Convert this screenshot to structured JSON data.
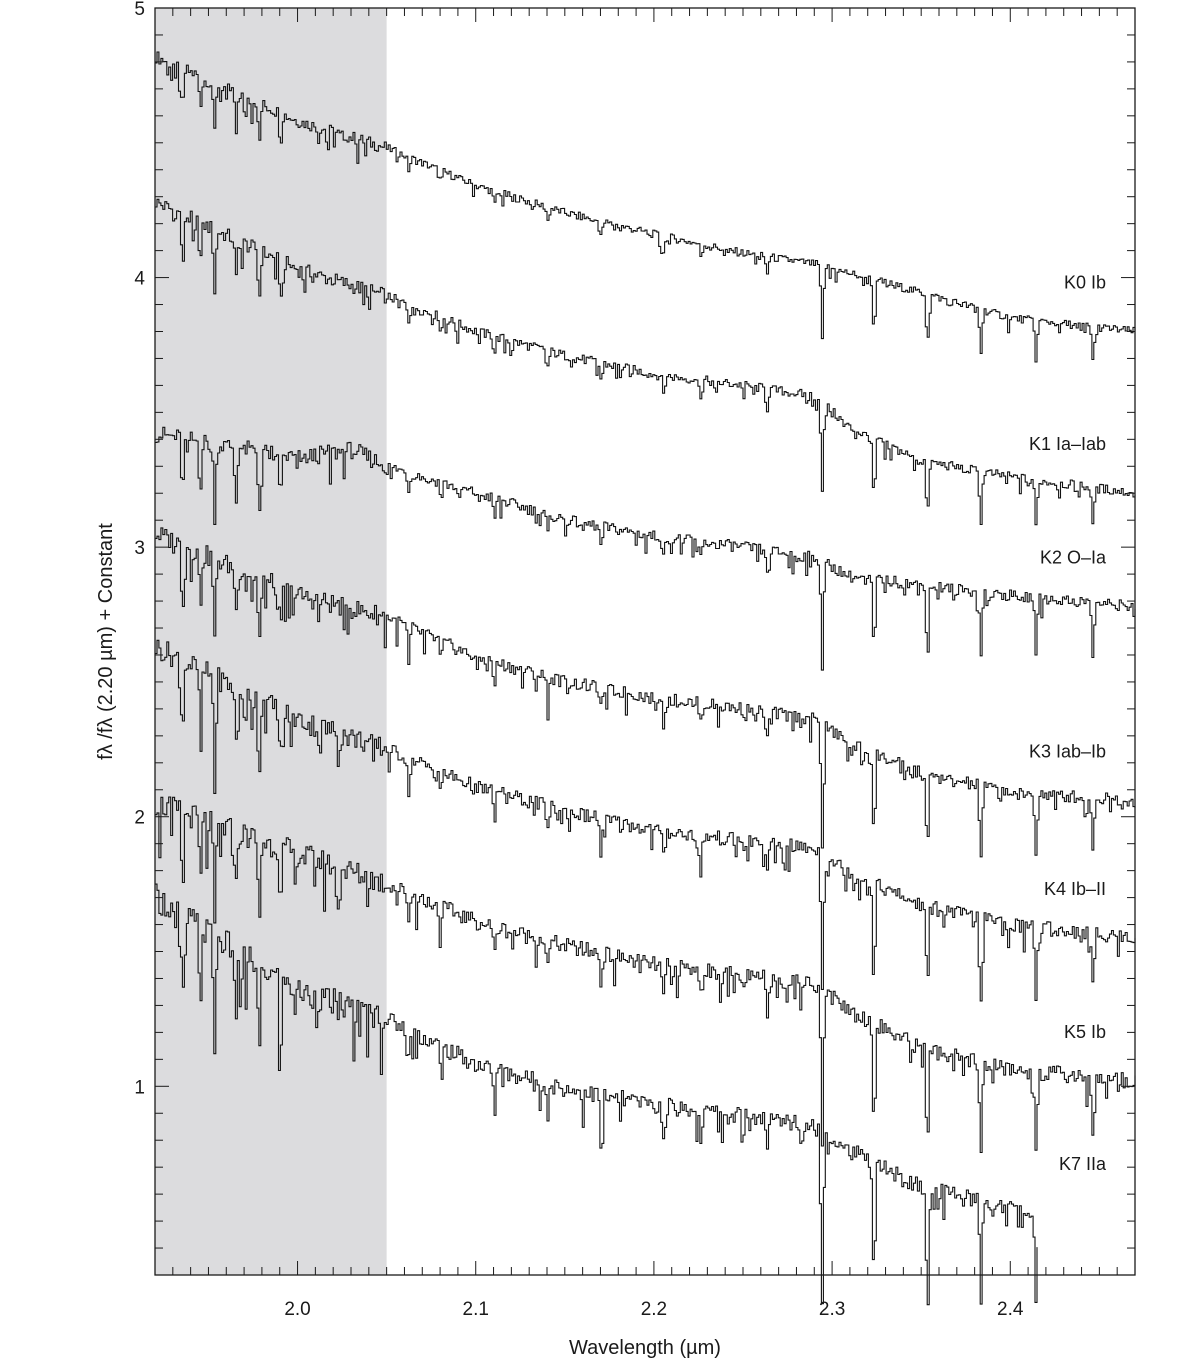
{
  "chart_data": {
    "type": "line",
    "xlabel": "Wavelength (µm)",
    "ylabel": "fλ /fλ (2.20 µm) + Constant",
    "xlim": [
      1.92,
      2.47
    ],
    "ylim": [
      0.3,
      5.0
    ],
    "x_ticks": [
      2.0,
      2.1,
      2.2,
      2.3,
      2.4
    ],
    "x_tick_labels": [
      "2.0",
      "2.1",
      "2.2",
      "2.3",
      "2.4"
    ],
    "y_ticks": [
      1,
      2,
      3,
      4,
      5
    ],
    "y_tick_labels": [
      "1",
      "2",
      "3",
      "4",
      "5"
    ],
    "shaded_region": {
      "x": [
        1.92,
        2.05
      ],
      "color": "#dcdcde"
    },
    "grid": false,
    "series": [
      {
        "name": "K0 Ib",
        "end": 2.47,
        "points": [
          [
            1.92,
            4.82
          ],
          [
            2.0,
            4.58
          ],
          [
            2.05,
            4.48
          ],
          [
            2.1,
            4.34
          ],
          [
            2.15,
            4.24
          ],
          [
            2.2,
            4.16
          ],
          [
            2.25,
            4.09
          ],
          [
            2.29,
            4.05
          ],
          [
            2.33,
            3.98
          ],
          [
            2.4,
            3.85
          ],
          [
            2.47,
            3.8
          ]
        ]
      },
      {
        "name": "K1 Ia–Iab",
        "end": 2.47,
        "points": [
          [
            1.92,
            4.28
          ],
          [
            2.0,
            4.03
          ],
          [
            2.05,
            3.93
          ],
          [
            2.1,
            3.8
          ],
          [
            2.15,
            3.71
          ],
          [
            2.2,
            3.64
          ],
          [
            2.25,
            3.6
          ],
          [
            2.29,
            3.56
          ],
          [
            2.31,
            3.44
          ],
          [
            2.35,
            3.32
          ],
          [
            2.4,
            3.26
          ],
          [
            2.47,
            3.2
          ]
        ]
      },
      {
        "name": "K2 O–Ia",
        "end": 2.47,
        "points": [
          [
            1.92,
            3.42
          ],
          [
            2.0,
            3.33
          ],
          [
            2.03,
            3.36
          ],
          [
            2.05,
            3.3
          ],
          [
            2.1,
            3.2
          ],
          [
            2.15,
            3.1
          ],
          [
            2.2,
            3.04
          ],
          [
            2.25,
            3.0
          ],
          [
            2.29,
            2.96
          ],
          [
            2.31,
            2.89
          ],
          [
            2.35,
            2.86
          ],
          [
            2.4,
            2.82
          ],
          [
            2.47,
            2.78
          ]
        ]
      },
      {
        "name": "K3 Iab–Ib",
        "end": 2.47,
        "points": [
          [
            1.92,
            3.05
          ],
          [
            2.0,
            2.82
          ],
          [
            2.05,
            2.74
          ],
          [
            2.1,
            2.59
          ],
          [
            2.15,
            2.5
          ],
          [
            2.2,
            2.44
          ],
          [
            2.25,
            2.4
          ],
          [
            2.29,
            2.36
          ],
          [
            2.31,
            2.27
          ],
          [
            2.35,
            2.16
          ],
          [
            2.4,
            2.09
          ],
          [
            2.47,
            2.06
          ]
        ]
      },
      {
        "name": "K4 Ib–II",
        "end": 2.47,
        "points": [
          [
            1.92,
            2.63
          ],
          [
            2.0,
            2.36
          ],
          [
            2.05,
            2.25
          ],
          [
            2.1,
            2.11
          ],
          [
            2.15,
            2.02
          ],
          [
            2.2,
            1.95
          ],
          [
            2.25,
            1.91
          ],
          [
            2.29,
            1.88
          ],
          [
            2.31,
            1.79
          ],
          [
            2.35,
            1.67
          ],
          [
            2.4,
            1.6
          ],
          [
            2.47,
            1.55
          ]
        ]
      },
      {
        "name": "K5 Ib",
        "end": 2.47,
        "points": [
          [
            1.92,
            2.05
          ],
          [
            2.0,
            1.86
          ],
          [
            2.05,
            1.75
          ],
          [
            2.1,
            1.61
          ],
          [
            2.15,
            1.52
          ],
          [
            2.2,
            1.45
          ],
          [
            2.25,
            1.41
          ],
          [
            2.29,
            1.38
          ],
          [
            2.31,
            1.28
          ],
          [
            2.35,
            1.14
          ],
          [
            2.4,
            1.06
          ],
          [
            2.47,
            1.02
          ]
        ]
      },
      {
        "name": "K7 IIa",
        "end": 2.415,
        "points": [
          [
            1.92,
            1.7
          ],
          [
            2.0,
            1.35
          ],
          [
            2.05,
            1.25
          ],
          [
            2.1,
            1.08
          ],
          [
            2.15,
            0.99
          ],
          [
            2.2,
            0.93
          ],
          [
            2.25,
            0.89
          ],
          [
            2.29,
            0.86
          ],
          [
            2.31,
            0.76
          ],
          [
            2.35,
            0.62
          ],
          [
            2.4,
            0.55
          ],
          [
            2.415,
            0.53
          ]
        ]
      }
    ]
  }
}
